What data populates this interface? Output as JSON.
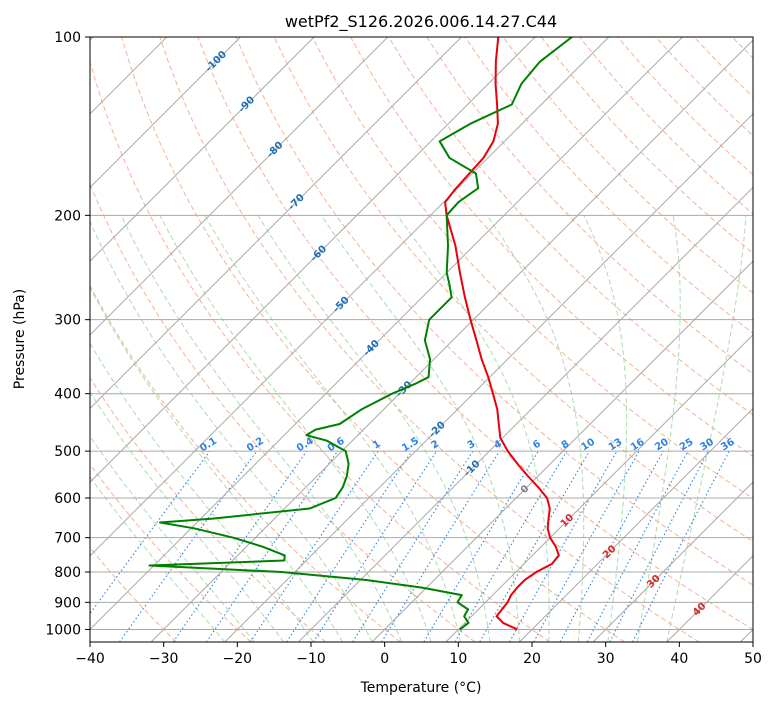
{
  "chart_data": {
    "type": "line",
    "title": "wetPf2_S126.2026.006.14.27.C44",
    "xlabel": "Temperature (°C)",
    "ylabel": "Pressure (hPa)",
    "xlim": [
      -40,
      50
    ],
    "ylim": [
      1050,
      100
    ],
    "y_scale": "log",
    "x_ticks": [
      "−40",
      "−30",
      "−20",
      "−10",
      "0",
      "10",
      "20",
      "30",
      "40",
      "50"
    ],
    "y_ticks": [
      {
        "value": 100,
        "label": "100"
      },
      {
        "value": 200,
        "label": "200"
      },
      {
        "value": 300,
        "label": "300"
      },
      {
        "value": 400,
        "label": "400"
      },
      {
        "value": 500,
        "label": "500"
      },
      {
        "value": 600,
        "label": "600"
      },
      {
        "value": 700,
        "label": "700"
      },
      {
        "value": 800,
        "label": "800"
      },
      {
        "value": 900,
        "label": "900"
      },
      {
        "value": 1000,
        "label": "1000"
      }
    ],
    "grid": true,
    "skew": true,
    "colors": {
      "temperature": "#e8000b",
      "dewpoint": "#008000",
      "isotherm": "#a9a9a9",
      "dry_adiabat": "#f4a582",
      "moist_adiabat": "#a6d6a6",
      "mixing_ratio": "#2b83e6",
      "isotherm_label": "#1f6eb4",
      "theta_label": "#d62728",
      "zero_label": "#808080"
    },
    "series": [
      {
        "key": "temperature",
        "points": [
          [
            1000,
            18.0
          ],
          [
            975,
            15.2
          ],
          [
            950,
            13.4
          ],
          [
            925,
            13.2
          ],
          [
            900,
            13.0
          ],
          [
            875,
            12.5
          ],
          [
            850,
            12.3
          ],
          [
            825,
            12.3
          ],
          [
            800,
            12.8
          ],
          [
            775,
            13.8
          ],
          [
            750,
            13.6
          ],
          [
            725,
            12.0
          ],
          [
            700,
            10.0
          ],
          [
            675,
            8.4
          ],
          [
            650,
            7.2
          ],
          [
            625,
            6.0
          ],
          [
            600,
            4.2
          ],
          [
            575,
            1.5
          ],
          [
            550,
            -1.5
          ],
          [
            525,
            -4.5
          ],
          [
            500,
            -7.5
          ],
          [
            475,
            -10.3
          ],
          [
            450,
            -12.4
          ],
          [
            425,
            -14.6
          ],
          [
            400,
            -17.3
          ],
          [
            375,
            -20.2
          ],
          [
            350,
            -23.5
          ],
          [
            325,
            -26.8
          ],
          [
            300,
            -30.4
          ],
          [
            275,
            -34.2
          ],
          [
            250,
            -38.2
          ],
          [
            225,
            -42.5
          ],
          [
            200,
            -47.8
          ],
          [
            190,
            -49.8
          ],
          [
            180,
            -50.2
          ],
          [
            170,
            -50.4
          ],
          [
            160,
            -50.6
          ],
          [
            150,
            -51.5
          ],
          [
            140,
            -53.3
          ],
          [
            130,
            -56.0
          ],
          [
            120,
            -59.0
          ],
          [
            110,
            -62.0
          ],
          [
            100,
            -65.0
          ]
        ]
      },
      {
        "key": "dewpoint",
        "points": [
          [
            1000,
            10.2
          ],
          [
            975,
            10.5
          ],
          [
            950,
            9.0
          ],
          [
            925,
            8.6
          ],
          [
            900,
            6.2
          ],
          [
            875,
            5.8
          ],
          [
            850,
            -0.6
          ],
          [
            825,
            -9.2
          ],
          [
            800,
            -21.8
          ],
          [
            780,
            -40.6
          ],
          [
            765,
            -23.0
          ],
          [
            750,
            -23.6
          ],
          [
            725,
            -27.8
          ],
          [
            700,
            -33.0
          ],
          [
            675,
            -39.6
          ],
          [
            660,
            -45.0
          ],
          [
            650,
            -38.4
          ],
          [
            625,
            -26.6
          ],
          [
            600,
            -24.5
          ],
          [
            575,
            -25.0
          ],
          [
            550,
            -26.0
          ],
          [
            525,
            -27.4
          ],
          [
            500,
            -29.5
          ],
          [
            480,
            -33.5
          ],
          [
            470,
            -37.0
          ],
          [
            460,
            -36.5
          ],
          [
            450,
            -34.0
          ],
          [
            425,
            -33.0
          ],
          [
            400,
            -31.0
          ],
          [
            385,
            -29.2
          ],
          [
            375,
            -28.3
          ],
          [
            350,
            -30.5
          ],
          [
            325,
            -33.8
          ],
          [
            300,
            -36.0
          ],
          [
            275,
            -36.0
          ],
          [
            260,
            -38.3
          ],
          [
            250,
            -40.0
          ],
          [
            225,
            -43.5
          ],
          [
            200,
            -47.8
          ],
          [
            190,
            -48.0
          ],
          [
            180,
            -47.2
          ],
          [
            170,
            -49.5
          ],
          [
            160,
            -55.2
          ],
          [
            150,
            -58.8
          ],
          [
            140,
            -57.0
          ],
          [
            130,
            -54.0
          ],
          [
            120,
            -55.5
          ],
          [
            110,
            -56.0
          ],
          [
            100,
            -55.0
          ]
        ]
      }
    ],
    "isotherm_labels": [
      {
        "t": -100,
        "p": 110,
        "label": "-100"
      },
      {
        "t": -90,
        "p": 130,
        "label": "-90"
      },
      {
        "t": -80,
        "p": 155,
        "label": "-80"
      },
      {
        "t": -70,
        "p": 190,
        "label": "-70"
      },
      {
        "t": -60,
        "p": 232,
        "label": "-60"
      },
      {
        "t": -50,
        "p": 283,
        "label": "-50"
      },
      {
        "t": -40,
        "p": 335,
        "label": "-40"
      },
      {
        "t": -30,
        "p": 393,
        "label": "-30"
      },
      {
        "t": -20,
        "p": 460,
        "label": "-20"
      },
      {
        "t": -10,
        "p": 535,
        "label": "-10"
      }
    ],
    "theta_labels": [
      {
        "t": 0,
        "p": 580,
        "label": "0",
        "key": "zero_label"
      },
      {
        "t": 10,
        "p": 655,
        "label": "10",
        "key": "theta_label"
      },
      {
        "t": 20,
        "p": 740,
        "label": "20",
        "key": "theta_label"
      },
      {
        "t": 30,
        "p": 830,
        "label": "30",
        "key": "theta_label"
      },
      {
        "t": 40,
        "p": 925,
        "label": "40",
        "key": "theta_label"
      }
    ],
    "mixing_ratio_labels": [
      "0.1",
      "0.2",
      "0.4",
      "0.6",
      "1",
      "1.5",
      "2",
      "3",
      "4",
      "6",
      "8",
      "10",
      "13",
      "16",
      "20",
      "25",
      "30",
      "36"
    ]
  }
}
